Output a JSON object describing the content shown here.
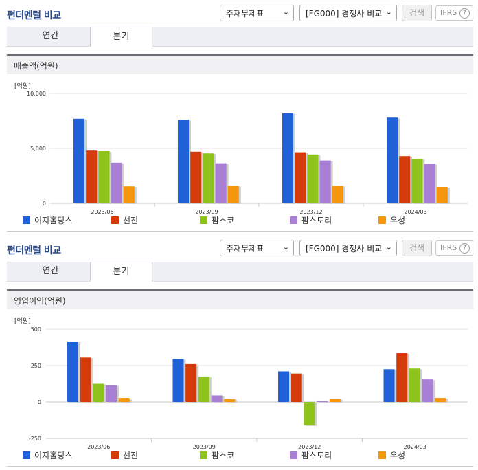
{
  "panels": [
    {
      "title": "펀더멘털 비교",
      "select1": "주재무제표",
      "select2": "[FG000] 경쟁사 비교",
      "search_label": "검색",
      "ifrs_label": "IFRS",
      "help_label": "?",
      "tabs": [
        "연간",
        "분기"
      ],
      "active_tab": "분기",
      "subheader": "매출액(억원)",
      "unit": "[억원]"
    },
    {
      "title": "펀더멘털 비교",
      "select1": "주재무제표",
      "select2": "[FG000] 경쟁사 비교",
      "search_label": "검색",
      "ifrs_label": "IFRS",
      "help_label": "?",
      "tabs": [
        "연간",
        "분기"
      ],
      "active_tab": "분기",
      "subheader": "영업이익(억원)",
      "unit": "[억원]"
    }
  ],
  "colors": {
    "이지홀딩스": "#2060d8",
    "선진": "#d43a0a",
    "팜스코": "#8ec31c",
    "팜스토리": "#a97fd6",
    "우성": "#f5960d",
    "title": "#2b4a8b"
  },
  "chart_data": [
    {
      "type": "bar",
      "title": "",
      "categories": [
        "2023/06",
        "2023/09",
        "2023/12",
        "2024/03"
      ],
      "ylim": [
        0,
        10000
      ],
      "yticks": [
        "10,000",
        "5,000",
        "0"
      ],
      "ytick_values": [
        10000,
        5000,
        0
      ],
      "series": [
        {
          "name": "이지홀딩스",
          "values": [
            7700,
            7600,
            8200,
            7800
          ]
        },
        {
          "name": "선진",
          "values": [
            4800,
            4700,
            4650,
            4300
          ]
        },
        {
          "name": "팜스코",
          "values": [
            4750,
            4550,
            4450,
            4050
          ]
        },
        {
          "name": "팜스토리",
          "values": [
            3700,
            3650,
            3900,
            3600
          ]
        },
        {
          "name": "우성",
          "values": [
            1550,
            1600,
            1600,
            1500
          ]
        }
      ],
      "grid": true,
      "legend": "bottom"
    },
    {
      "type": "bar",
      "title": "",
      "categories": [
        "2023/06",
        "2023/09",
        "2023/12",
        "2024/03"
      ],
      "ylim": [
        -250,
        500
      ],
      "yticks": [
        "500",
        "250",
        "0",
        "-250"
      ],
      "ytick_values": [
        500,
        250,
        0,
        -250
      ],
      "series": [
        {
          "name": "이지홀딩스",
          "values": [
            415,
            295,
            210,
            225
          ]
        },
        {
          "name": "선진",
          "values": [
            305,
            260,
            195,
            335
          ]
        },
        {
          "name": "팜스코",
          "values": [
            125,
            175,
            -160,
            230
          ]
        },
        {
          "name": "팜스토리",
          "values": [
            115,
            45,
            5,
            155
          ]
        },
        {
          "name": "우성",
          "values": [
            28,
            20,
            20,
            28
          ]
        }
      ],
      "grid": true,
      "legend": "bottom"
    }
  ]
}
